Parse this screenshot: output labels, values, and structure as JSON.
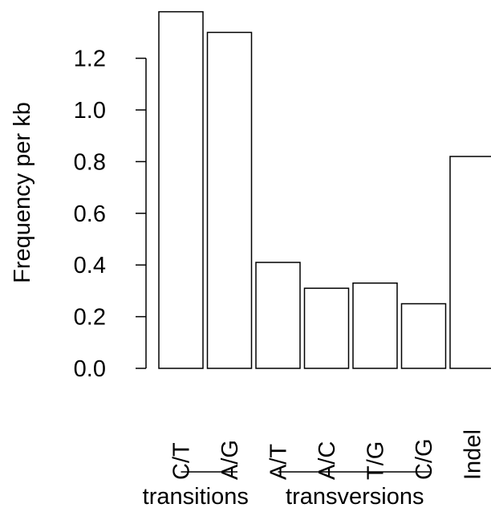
{
  "chart_data": {
    "type": "bar",
    "categories": [
      "C/T",
      "A/G",
      "A/T",
      "A/C",
      "T/G",
      "C/G",
      "Indel"
    ],
    "values": [
      1.38,
      1.3,
      0.41,
      0.31,
      0.33,
      0.25,
      0.82
    ],
    "ylabel": "Frequency per kb",
    "xlabel": "",
    "yticks": [
      "0.0",
      "0.2",
      "0.4",
      "0.6",
      "0.8",
      "1.0",
      "1.2"
    ],
    "ylim": [
      0,
      1.4
    ],
    "groups": [
      {
        "label": "transitions",
        "categories": [
          "C/T",
          "A/G"
        ]
      },
      {
        "label": "transversions",
        "categories": [
          "A/T",
          "A/C",
          "T/G",
          "C/G"
        ]
      }
    ],
    "bar_fill": "#ffffff",
    "bar_stroke": "#000000",
    "grid": false,
    "legend": "none"
  }
}
